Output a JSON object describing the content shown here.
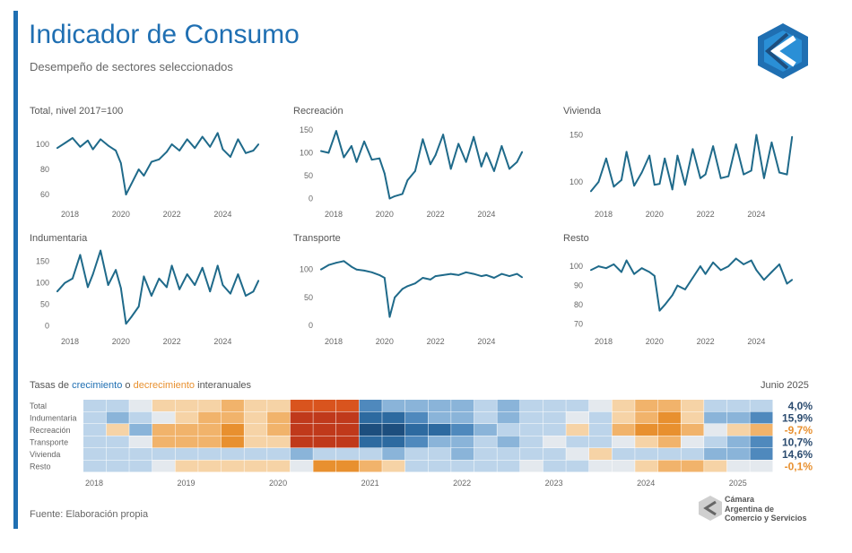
{
  "header": {
    "title": "Indicador de Consumo",
    "subtitle": "Desempeño de sectores seleccionados"
  },
  "colors": {
    "accent": "#1f6fb2",
    "line": "#1f6a8a",
    "positive_dark": "#1d4e7e",
    "positive_light": "#bcd4ea",
    "negative_light": "#f6d3a6",
    "negative_dark": "#c0391b"
  },
  "chart_data": [
    {
      "type": "line",
      "title": "Total, nivel 2017=100",
      "xlabels": [
        "2018",
        "2020",
        "2022",
        "2024"
      ],
      "yticks": [
        60,
        80,
        100
      ],
      "ylim": [
        55,
        115
      ],
      "x": [
        2017.5,
        2017.8,
        2018.1,
        2018.4,
        2018.7,
        2018.9,
        2019.2,
        2019.5,
        2019.8,
        2020.0,
        2020.2,
        2020.4,
        2020.7,
        2020.9,
        2021.2,
        2021.5,
        2021.8,
        2022.0,
        2022.3,
        2022.6,
        2022.9,
        2023.2,
        2023.5,
        2023.8,
        2024.0,
        2024.3,
        2024.6,
        2024.9,
        2025.2,
        2025.4
      ],
      "values": [
        97,
        101,
        105,
        98,
        103,
        96,
        104,
        99,
        95,
        85,
        60,
        68,
        80,
        75,
        86,
        88,
        94,
        100,
        95,
        104,
        97,
        106,
        98,
        109,
        96,
        90,
        104,
        93,
        95,
        100
      ]
    },
    {
      "type": "line",
      "title": "Recreación",
      "xlabels": [
        "2018",
        "2020",
        "2022",
        "2024"
      ],
      "yticks": [
        0,
        50,
        100,
        150
      ],
      "ylim": [
        -5,
        160
      ],
      "x": [
        2017.5,
        2017.8,
        2018.1,
        2018.4,
        2018.7,
        2018.9,
        2019.2,
        2019.5,
        2019.8,
        2020.0,
        2020.2,
        2020.4,
        2020.7,
        2020.9,
        2021.2,
        2021.5,
        2021.8,
        2022.0,
        2022.3,
        2022.6,
        2022.9,
        2023.2,
        2023.5,
        2023.8,
        2024.0,
        2024.3,
        2024.6,
        2024.9,
        2025.2,
        2025.4
      ],
      "values": [
        104,
        100,
        148,
        90,
        115,
        80,
        125,
        85,
        88,
        55,
        0,
        5,
        10,
        40,
        60,
        130,
        75,
        95,
        140,
        65,
        120,
        80,
        135,
        70,
        100,
        60,
        115,
        65,
        80,
        102
      ]
    },
    {
      "type": "line",
      "title": "Vivienda",
      "xlabels": [
        "2018",
        "2020",
        "2022",
        "2024"
      ],
      "yticks": [
        100,
        150
      ],
      "ylim": [
        80,
        160
      ],
      "x": [
        2017.5,
        2017.8,
        2018.1,
        2018.4,
        2018.7,
        2018.9,
        2019.2,
        2019.5,
        2019.8,
        2020.0,
        2020.2,
        2020.4,
        2020.7,
        2020.9,
        2021.2,
        2021.5,
        2021.8,
        2022.0,
        2022.3,
        2022.6,
        2022.9,
        2023.2,
        2023.5,
        2023.8,
        2024.0,
        2024.3,
        2024.6,
        2024.9,
        2025.2,
        2025.4
      ],
      "values": [
        90,
        100,
        125,
        95,
        102,
        132,
        96,
        110,
        128,
        97,
        98,
        125,
        92,
        128,
        97,
        135,
        104,
        108,
        138,
        104,
        106,
        140,
        108,
        112,
        150,
        104,
        142,
        110,
        108,
        148
      ]
    },
    {
      "type": "line",
      "title": "Indumentaria",
      "xlabels": [
        "2018",
        "2020",
        "2022",
        "2024"
      ],
      "yticks": [
        0,
        50,
        100,
        150
      ],
      "ylim": [
        -5,
        170
      ],
      "x": [
        2017.5,
        2017.8,
        2018.1,
        2018.4,
        2018.7,
        2018.9,
        2019.2,
        2019.5,
        2019.8,
        2020.0,
        2020.2,
        2020.4,
        2020.7,
        2020.9,
        2021.2,
        2021.5,
        2021.8,
        2022.0,
        2022.3,
        2022.6,
        2022.9,
        2023.2,
        2023.5,
        2023.8,
        2024.0,
        2024.3,
        2024.6,
        2024.9,
        2025.2,
        2025.4
      ],
      "values": [
        80,
        100,
        110,
        165,
        90,
        120,
        175,
        95,
        130,
        88,
        5,
        20,
        45,
        115,
        70,
        110,
        90,
        140,
        85,
        120,
        95,
        135,
        80,
        140,
        95,
        75,
        120,
        70,
        80,
        105
      ]
    },
    {
      "type": "line",
      "title": "Transporte",
      "xlabels": [
        "2018",
        "2020",
        "2022",
        "2024"
      ],
      "yticks": [
        0,
        50,
        100
      ],
      "ylim": [
        -5,
        130
      ],
      "x": [
        2017.5,
        2017.8,
        2018.1,
        2018.4,
        2018.7,
        2018.9,
        2019.2,
        2019.5,
        2019.8,
        2020.0,
        2020.2,
        2020.4,
        2020.7,
        2020.9,
        2021.2,
        2021.5,
        2021.8,
        2022.0,
        2022.3,
        2022.6,
        2022.9,
        2023.2,
        2023.5,
        2023.8,
        2024.0,
        2024.3,
        2024.6,
        2024.9,
        2025.2,
        2025.4
      ],
      "values": [
        100,
        108,
        112,
        115,
        105,
        100,
        98,
        95,
        90,
        85,
        15,
        50,
        65,
        70,
        75,
        85,
        82,
        88,
        90,
        92,
        90,
        95,
        92,
        88,
        90,
        85,
        92,
        88,
        92,
        86
      ]
    },
    {
      "type": "line",
      "title": "Resto",
      "xlabels": [
        "2018",
        "2020",
        "2022",
        "2024"
      ],
      "yticks": [
        70,
        80,
        90,
        100
      ],
      "ylim": [
        68,
        107
      ],
      "x": [
        2017.5,
        2017.8,
        2018.1,
        2018.4,
        2018.7,
        2018.9,
        2019.2,
        2019.5,
        2019.8,
        2020.0,
        2020.2,
        2020.4,
        2020.7,
        2020.9,
        2021.2,
        2021.5,
        2021.8,
        2022.0,
        2022.3,
        2022.6,
        2022.9,
        2023.2,
        2023.5,
        2023.8,
        2024.0,
        2024.3,
        2024.6,
        2024.9,
        2025.2,
        2025.4
      ],
      "values": [
        98,
        100,
        99,
        101,
        97,
        103,
        96,
        99,
        97,
        95,
        77,
        80,
        85,
        90,
        88,
        94,
        100,
        96,
        102,
        98,
        100,
        104,
        101,
        103,
        98,
        93,
        97,
        101,
        91,
        93
      ]
    },
    {
      "type": "heatmap",
      "title_parts": [
        "Tasas de ",
        "crecimiento",
        " o ",
        "decrecimiento",
        " interanuales"
      ],
      "date_label": "Junio 2025",
      "rows": [
        "Total",
        "Indumentaria",
        "Recreación",
        "Transporte",
        "Vivienda",
        "Resto"
      ],
      "row_values": [
        "4,0%",
        "15,9%",
        "-9,7%",
        "10,7%",
        "14,6%",
        "-0,1%"
      ],
      "xlabels": [
        "2018",
        "2019",
        "2020",
        "2021",
        "2022",
        "2023",
        "2024",
        "2025"
      ],
      "periods": [
        "2018",
        "2018",
        "2018",
        "2018",
        "2019",
        "2019",
        "2019",
        "2019",
        "2020",
        "2020",
        "2020",
        "2020",
        "2021",
        "2021",
        "2021",
        "2021",
        "2022",
        "2022",
        "2022",
        "2022",
        "2023",
        "2023",
        "2023",
        "2023",
        "2024",
        "2024",
        "2024",
        "2024",
        "2025",
        "2025"
      ],
      "values": [
        [
          1,
          1,
          0,
          -1,
          -1,
          -1,
          -2,
          -1,
          -1,
          -4,
          -4,
          -4,
          3,
          2,
          2,
          2,
          2,
          1,
          2,
          1,
          1,
          1,
          0,
          -1,
          -2,
          -2,
          -1,
          1,
          1,
          1
        ],
        [
          1,
          2,
          1,
          0,
          -1,
          -2,
          -2,
          -1,
          -2,
          -5,
          -5,
          -5,
          4,
          4,
          3,
          2,
          2,
          1,
          2,
          1,
          1,
          0,
          1,
          -1,
          -2,
          -3,
          -1,
          2,
          2,
          3
        ],
        [
          1,
          -1,
          2,
          -2,
          -2,
          -2,
          -3,
          -1,
          -2,
          -5,
          -5,
          -5,
          5,
          5,
          4,
          4,
          3,
          2,
          1,
          1,
          1,
          -1,
          1,
          -2,
          -3,
          -3,
          -2,
          0,
          -1,
          -2
        ],
        [
          1,
          1,
          0,
          -2,
          -2,
          -2,
          -3,
          -1,
          -1,
          -5,
          -5,
          -5,
          4,
          4,
          3,
          2,
          2,
          1,
          2,
          1,
          0,
          1,
          1,
          0,
          -1,
          -2,
          0,
          1,
          2,
          3
        ],
        [
          1,
          1,
          1,
          1,
          1,
          1,
          1,
          1,
          1,
          2,
          1,
          1,
          1,
          2,
          1,
          1,
          2,
          1,
          1,
          1,
          1,
          0,
          -1,
          1,
          1,
          1,
          1,
          2,
          2,
          3
        ],
        [
          1,
          1,
          1,
          0,
          -1,
          -1,
          -1,
          -1,
          -1,
          0,
          -3,
          -3,
          -2,
          -1,
          1,
          1,
          1,
          1,
          1,
          0,
          1,
          1,
          0,
          0,
          -1,
          -2,
          -2,
          -1,
          0,
          0
        ]
      ]
    }
  ],
  "footer": {
    "source": "Fuente: Elaboración propia",
    "org_lines": [
      "Cámara",
      "Argentina de",
      "Comercio y Servicios"
    ]
  }
}
